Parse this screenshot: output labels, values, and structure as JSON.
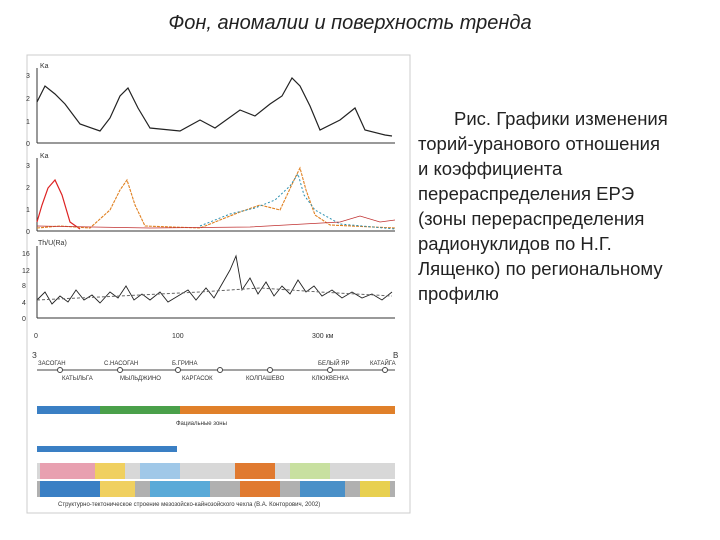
{
  "header": {
    "title": "Фон, аномалии и поверхность тренда"
  },
  "caption": {
    "lines": [
      "Рис. Графики изменения",
      "торий-уранового отношения",
      "и коэффициента",
      "перераспределения ЕРЭ",
      "(зоны перераспределения",
      "радионуклидов по Н.Г.",
      "Лященко) по региональному",
      "профилю"
    ]
  },
  "figure": {
    "panels": [
      {
        "y_label": "Ka",
        "ticks": [
          "3",
          "2",
          "1",
          "0"
        ]
      },
      {
        "y_label": "Ka",
        "ticks": [
          "3",
          "2",
          "1",
          "0"
        ]
      },
      {
        "y_label": "Th/U(Ra)",
        "ticks": [
          "16",
          "12",
          "8",
          "4",
          "0"
        ]
      }
    ],
    "x_ticks": [
      "0",
      "100",
      "300 км"
    ],
    "profile": {
      "west": "З",
      "east": "В",
      "top_places": [
        "ЗАСОГАН",
        "С.НАСОГАН",
        "Б.ГРИНА",
        "БЕЛЫЙ ЯР",
        "КАТАЙГА"
      ],
      "bottom_places": [
        "КАТЫЛЬГА",
        "МЫЛЬДЖИНО",
        "КАРГАСОК",
        "КОЛПАШЕВО",
        "КЛЮКВЕНКА"
      ]
    },
    "facies_title": "Фациальные зоны",
    "footer": "Структурно-тектоническое строение мезозойско-кайнозойского чехла (В.А. Конторович, 2002)"
  }
}
